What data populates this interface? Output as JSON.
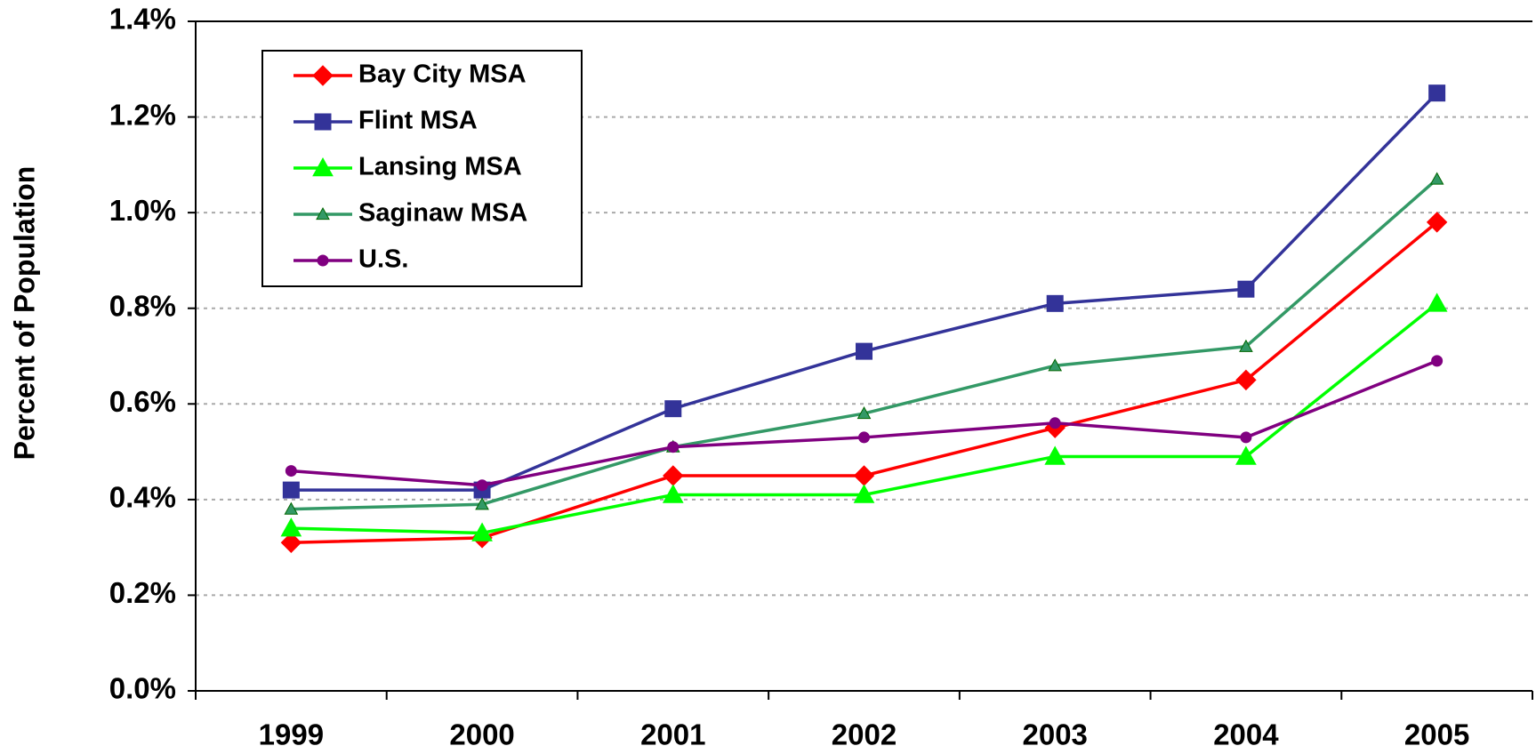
{
  "chart_data": {
    "type": "line",
    "y_label": "Percent of Population",
    "categories": [
      "1999",
      "2000",
      "2001",
      "2002",
      "2003",
      "2004",
      "2005"
    ],
    "series": [
      {
        "name": "Bay City MSA",
        "color": "#ff0000",
        "marker": "diamond",
        "values": [
          0.31,
          0.32,
          0.45,
          0.45,
          0.55,
          0.65,
          0.98
        ]
      },
      {
        "name": "Flint MSA",
        "color": "#333399",
        "marker": "square",
        "values": [
          0.42,
          0.42,
          0.59,
          0.71,
          0.81,
          0.84,
          1.25
        ]
      },
      {
        "name": "Lansing MSA",
        "color": "#00ff00",
        "marker": "triangle",
        "values": [
          0.34,
          0.33,
          0.41,
          0.41,
          0.49,
          0.49,
          0.81
        ]
      },
      {
        "name": "Saginaw MSA",
        "color": "#339966",
        "marker": "small-triangle",
        "values": [
          0.38,
          0.39,
          0.51,
          0.58,
          0.68,
          0.72,
          1.07
        ]
      },
      {
        "name": "U.S.",
        "color": "#800080",
        "marker": "circle",
        "values": [
          0.46,
          0.43,
          0.51,
          0.53,
          0.56,
          0.53,
          0.69
        ]
      }
    ],
    "ylim": [
      0,
      1.4
    ],
    "yticks": [
      {
        "value": 0,
        "label": "0.0%"
      },
      {
        "value": 0.2,
        "label": "0.2%"
      },
      {
        "value": 0.4,
        "label": "0.4%"
      },
      {
        "value": 0.6,
        "label": "0.6%"
      },
      {
        "value": 0.8,
        "label": "0.8%"
      },
      {
        "value": 1.0,
        "label": "1.0%"
      },
      {
        "value": 1.2,
        "label": "1.2%"
      },
      {
        "value": 1.4,
        "label": "1.4%"
      }
    ],
    "grid": true,
    "legend": "upper left"
  }
}
